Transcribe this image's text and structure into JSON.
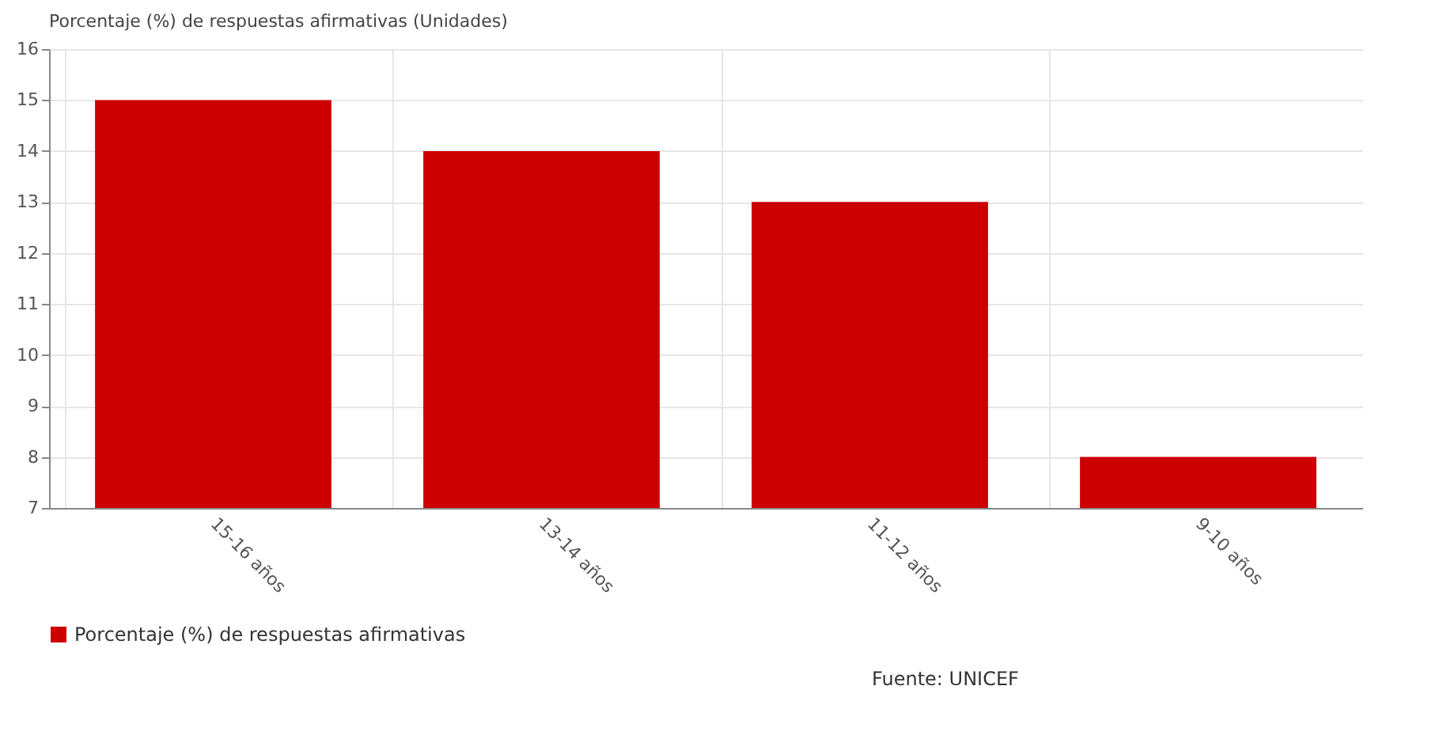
{
  "chart_data": {
    "type": "bar",
    "ylabel": "Porcentaje (%) de respuestas afirmativas (Unidades)",
    "categories": [
      "15-16 años",
      "13-14 años",
      "11-12 años",
      "9-10 años"
    ],
    "series": [
      {
        "name": "Porcentaje (%) de respuestas afirmativas",
        "color": "#cc0000",
        "values": [
          15,
          14,
          13,
          8
        ]
      }
    ],
    "ylim": [
      7,
      16
    ],
    "yticks": [
      7,
      8,
      9,
      10,
      11,
      12,
      13,
      14,
      15,
      16
    ],
    "grid": true,
    "legend": "bottom",
    "annotations": [
      "Fuente: UNICEF"
    ]
  }
}
